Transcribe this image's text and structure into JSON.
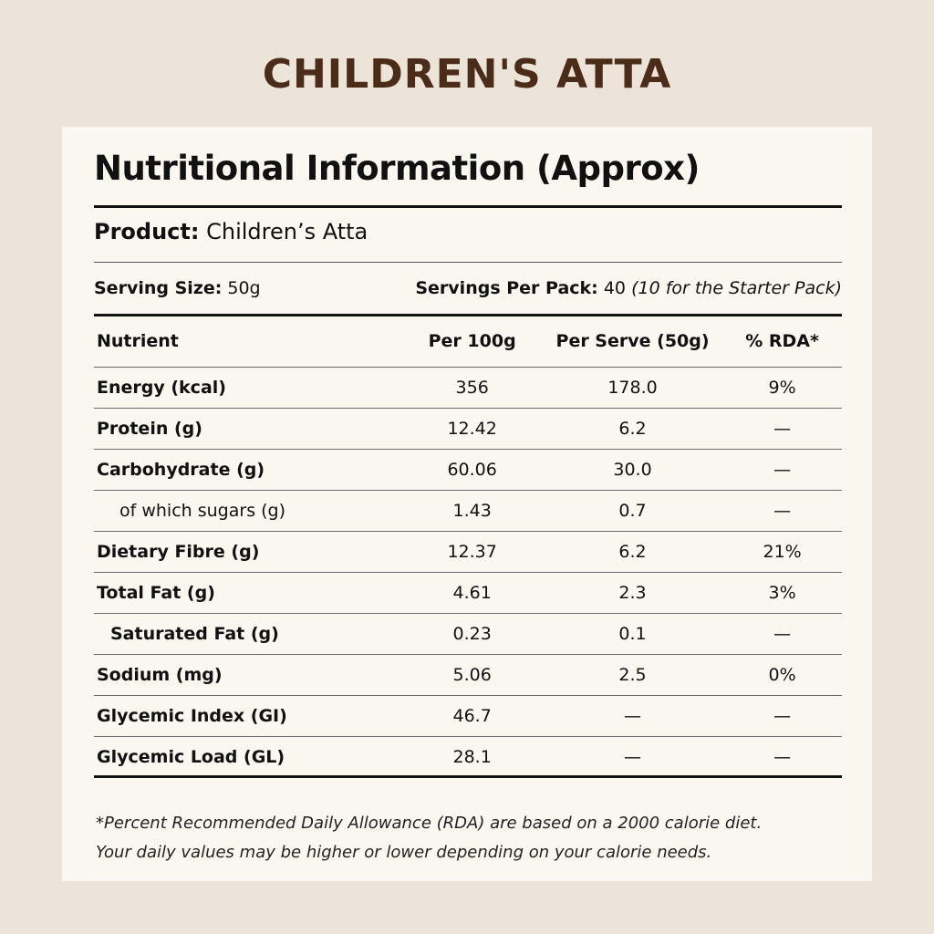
{
  "brand_title": "CHILDREN'S ATTA",
  "panel_title": "Nutritional Information (Approx)",
  "product": {
    "label": "Product:",
    "value": "Children’s Atta"
  },
  "serving": {
    "size_label": "Serving Size:",
    "size_value": "50g",
    "per_pack_label": "Servings Per Pack:",
    "per_pack_value": "40",
    "per_pack_note": "(10 for the Starter Pack)"
  },
  "table": {
    "headers": [
      "Nutrient",
      "Per 100g",
      "Per Serve (50g)",
      "% RDA*"
    ],
    "rows": [
      {
        "name": "Energy (kcal)",
        "per100": "356",
        "serve": "178.0",
        "rda": "9%",
        "style": "bold"
      },
      {
        "name": "Protein (g)",
        "per100": "12.42",
        "serve": "6.2",
        "rda": "—",
        "style": "bold"
      },
      {
        "name": "Carbohydrate (g)",
        "per100": "60.06",
        "serve": "30.0",
        "rda": "—",
        "style": "bold"
      },
      {
        "name": "of which sugars (g)",
        "per100": "1.43",
        "serve": "0.7",
        "rda": "—",
        "style": "sub"
      },
      {
        "name": "Dietary Fibre (g)",
        "per100": "12.37",
        "serve": "6.2",
        "rda": "21%",
        "style": "bold"
      },
      {
        "name": "Total Fat (g)",
        "per100": "4.61",
        "serve": "2.3",
        "rda": "3%",
        "style": "bold"
      },
      {
        "name": "Saturated Fat (g)",
        "per100": "0.23",
        "serve": "0.1",
        "rda": "—",
        "style": "subbold"
      },
      {
        "name": "Sodium (mg)",
        "per100": "5.06",
        "serve": "2.5",
        "rda": "0%",
        "style": "bold"
      },
      {
        "name": "Glycemic Index (GI)",
        "per100": "46.7",
        "serve": "—",
        "rda": "—",
        "style": "bold"
      },
      {
        "name": "Glycemic Load (GL)",
        "per100": "28.1",
        "serve": "—",
        "rda": "—",
        "style": "bold"
      }
    ]
  },
  "footnote": {
    "line1": "*Percent Recommended Daily Allowance (RDA) are based on a 2000 calorie diet.",
    "line2": "Your daily values may be higher or lower depending on your calorie needs."
  },
  "colors": {
    "background": "#ece4d9",
    "card": "#faf7f1",
    "brand": "#4b2c18"
  }
}
